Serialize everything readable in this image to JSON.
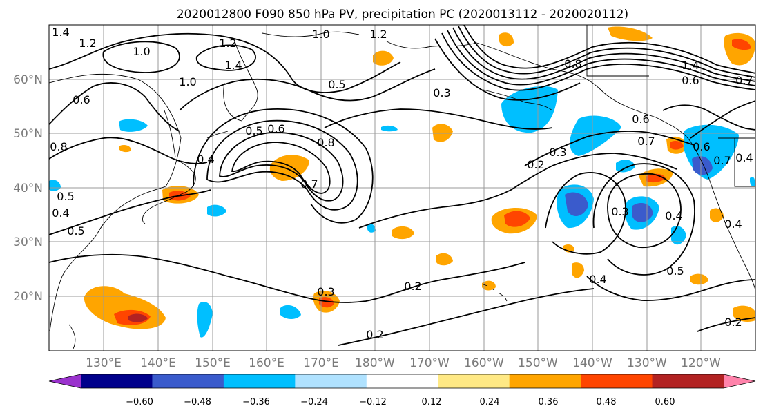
{
  "title": "2020012800 F090 850 hPa PV, precipitation PC (2020013112 - 2020020112)",
  "lat_labels": [
    "60°N",
    "50°N",
    "40°N",
    "30°N",
    "20°N"
  ],
  "lon_labels": [
    "130°E",
    "140°E",
    "150°E",
    "160°E",
    "170°E",
    "180°W",
    "170°W",
    "160°W",
    "150°W",
    "140°W",
    "130°W",
    "120°W"
  ],
  "contour_labels": [
    "1.4",
    "1.2",
    "1.0",
    "1.2",
    "1.0",
    "1.2",
    "1.4",
    "1.0",
    "0.6",
    "0.5",
    "0.3",
    "0.8",
    "1.4",
    "0.6",
    "0.7",
    "0.8",
    "0.6",
    "0.5",
    "0.8",
    "0.4",
    "0.4",
    "0.5",
    "0.6",
    "0.7",
    "0.7",
    "0.2",
    "0.3",
    "0.6",
    "0.7",
    "0.4",
    "0.3",
    "0.4",
    "0.5",
    "0.4",
    "0.4",
    "0.5",
    "0.3",
    "0.2",
    "0.2",
    "0.2"
  ],
  "colorbar": {
    "tick_labels": [
      "−0.60",
      "−0.48",
      "−0.36",
      "−0.24",
      "−0.12",
      "0.12",
      "0.24",
      "0.36",
      "0.48",
      "0.60"
    ],
    "colors": [
      "#9a32cd",
      "#00008b",
      "#3a5bcc",
      "#00bfff",
      "#b0e2ff",
      "#ffffff",
      "#ffe985",
      "#ffa500",
      "#ff4500",
      "#b22222",
      "#ff83ab"
    ]
  },
  "map_colors": {
    "neg_strong": "#3a5bcc",
    "neg_mid": "#00bfff",
    "neg_weak": "#b0e2ff",
    "pos_weak": "#ffe985",
    "pos_mid": "#ffa500",
    "pos_strong": "#ff4500",
    "pos_vstrong": "#b22222"
  }
}
